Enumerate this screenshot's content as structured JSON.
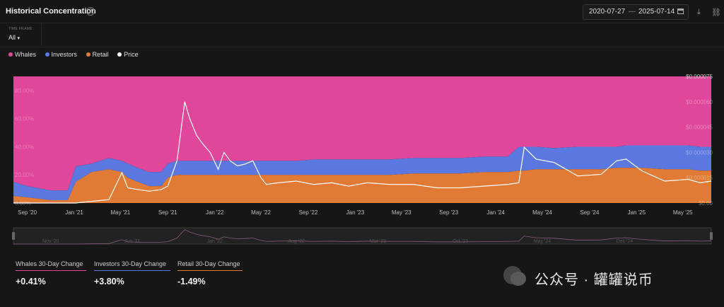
{
  "header": {
    "title": "Historical Concentration",
    "help_glyph": "?",
    "date_start": "2020-07-27",
    "date_sep": "—",
    "date_end": "2025-07-14"
  },
  "timeframe": {
    "label": "TIME FRAME",
    "value": "All"
  },
  "legend": [
    {
      "name": "Whales",
      "color": "#e0469a"
    },
    {
      "name": "Investors",
      "color": "#5b78e0"
    },
    {
      "name": "Retail",
      "color": "#e07a35"
    },
    {
      "name": "Price",
      "color": "#ffffff"
    }
  ],
  "chart_data": {
    "type": "area",
    "stacked_percent": true,
    "x_tick_labels": [
      "Sep '20",
      "Jan '21",
      "May '21",
      "Sep '21",
      "Jan '22",
      "May '22",
      "Sep '22",
      "Jan '23",
      "May '23",
      "Sep '23",
      "Jan '24",
      "May '24",
      "Sep '24",
      "Jan '25",
      "May '25"
    ],
    "left_axis_labels": [
      "80.00%",
      "60.00%",
      "40.00%",
      "20.00%",
      "0.00%"
    ],
    "right_axis_labels": [
      "$0.000075",
      "$0.000060",
      "$0.000045",
      "$0.000030",
      "$0.000015",
      "$0.00"
    ],
    "left_ylim": [
      0,
      90
    ],
    "right_ylim": [
      0,
      7.5e-05
    ],
    "x": [
      "2020-07-27",
      "2020-09-01",
      "2020-11-01",
      "2020-12-15",
      "2021-01-05",
      "2021-02-15",
      "2021-04-01",
      "2021-05-05",
      "2021-05-20",
      "2021-06-15",
      "2021-07-15",
      "2021-08-15",
      "2021-09-01",
      "2021-09-25",
      "2021-10-15",
      "2021-10-28",
      "2021-11-15",
      "2021-12-01",
      "2021-12-20",
      "2022-01-10",
      "2022-01-25",
      "2022-02-10",
      "2022-03-01",
      "2022-03-20",
      "2022-04-10",
      "2022-05-01",
      "2022-05-15",
      "2022-06-15",
      "2022-08-01",
      "2022-09-15",
      "2022-11-01",
      "2022-12-15",
      "2023-02-01",
      "2023-04-01",
      "2023-06-01",
      "2023-08-01",
      "2023-10-01",
      "2023-12-01",
      "2024-02-01",
      "2024-03-01",
      "2024-03-15",
      "2024-04-15",
      "2024-06-01",
      "2024-08-01",
      "2024-10-01",
      "2024-11-10",
      "2024-12-05",
      "2025-01-15",
      "2025-03-15",
      "2025-05-15",
      "2025-06-15",
      "2025-07-14"
    ],
    "series": [
      {
        "name": "Retail",
        "values": [
          5,
          4,
          2,
          2,
          15,
          22,
          24,
          22,
          18,
          15,
          12,
          12,
          18,
          20,
          20,
          20,
          20,
          20,
          20,
          20,
          20,
          20,
          20,
          20,
          20,
          20,
          20,
          20,
          20,
          20,
          20,
          20,
          20,
          20,
          21,
          21,
          21,
          22,
          22,
          23,
          23,
          24,
          24,
          24,
          24,
          25,
          25,
          25,
          24,
          24,
          23,
          23
        ]
      },
      {
        "name": "Investors",
        "values": [
          15,
          12,
          9,
          9,
          26,
          28,
          32,
          30,
          28,
          25,
          22,
          22,
          28,
          30,
          30,
          30,
          30,
          30,
          30,
          30,
          30,
          30,
          30,
          30,
          30,
          30,
          30,
          30,
          30,
          31,
          31,
          31,
          31,
          31,
          32,
          32,
          32,
          33,
          33,
          40,
          40,
          40,
          39,
          40,
          40,
          40,
          41,
          41,
          41,
          41,
          40,
          40
        ]
      },
      {
        "name": "Whales",
        "values": [
          100,
          100,
          100,
          100,
          100,
          100,
          100,
          100,
          100,
          100,
          100,
          100,
          100,
          100,
          100,
          100,
          100,
          100,
          100,
          100,
          100,
          100,
          100,
          100,
          100,
          100,
          100,
          100,
          100,
          100,
          100,
          100,
          100,
          100,
          100,
          100,
          100,
          100,
          100,
          100,
          100,
          100,
          100,
          100,
          100,
          100,
          100,
          100,
          100,
          100,
          100,
          100
        ]
      },
      {
        "name": "Price",
        "values": [
          0,
          0,
          0,
          0,
          0,
          1e-06,
          2e-06,
          1.8e-05,
          9e-06,
          8e-06,
          7e-06,
          8e-06,
          1e-05,
          2.5e-05,
          6e-05,
          5e-05,
          4e-05,
          3.5e-05,
          3e-05,
          2e-05,
          3e-05,
          2.5e-05,
          2.2e-05,
          2.3e-05,
          2.5e-05,
          1.5e-05,
          1.1e-05,
          1.2e-05,
          1.3e-05,
          1.1e-05,
          1.2e-05,
          1e-05,
          1.2e-05,
          1.1e-05,
          1.1e-05,
          9e-06,
          9e-06,
          1e-05,
          1.1e-05,
          1.2e-05,
          3.3e-05,
          2.6e-05,
          2.4e-05,
          1.6e-05,
          1.7e-05,
          2.5e-05,
          2.6e-05,
          1.9e-05,
          1.3e-05,
          1.4e-05,
          1.2e-05,
          1.3e-05
        ]
      }
    ],
    "navigator_labels": [
      "Nov '20",
      "Jun '21",
      "Jan '22",
      "Aug '22",
      "Mar '23",
      "Oct '23",
      "May '24",
      "Dec '24"
    ]
  },
  "stats": [
    {
      "label": "Whales 30-Day Change",
      "value": "+0.41%",
      "color": "#e0469a"
    },
    {
      "label": "Investors 30-Day Change",
      "value": "+3.80%",
      "color": "#5b78e0"
    },
    {
      "label": "Retail 30-Day Change",
      "value": "-1.49%",
      "color": "#e07a35"
    }
  ],
  "watermark": {
    "text": "公众号 · 罐罐说币"
  }
}
